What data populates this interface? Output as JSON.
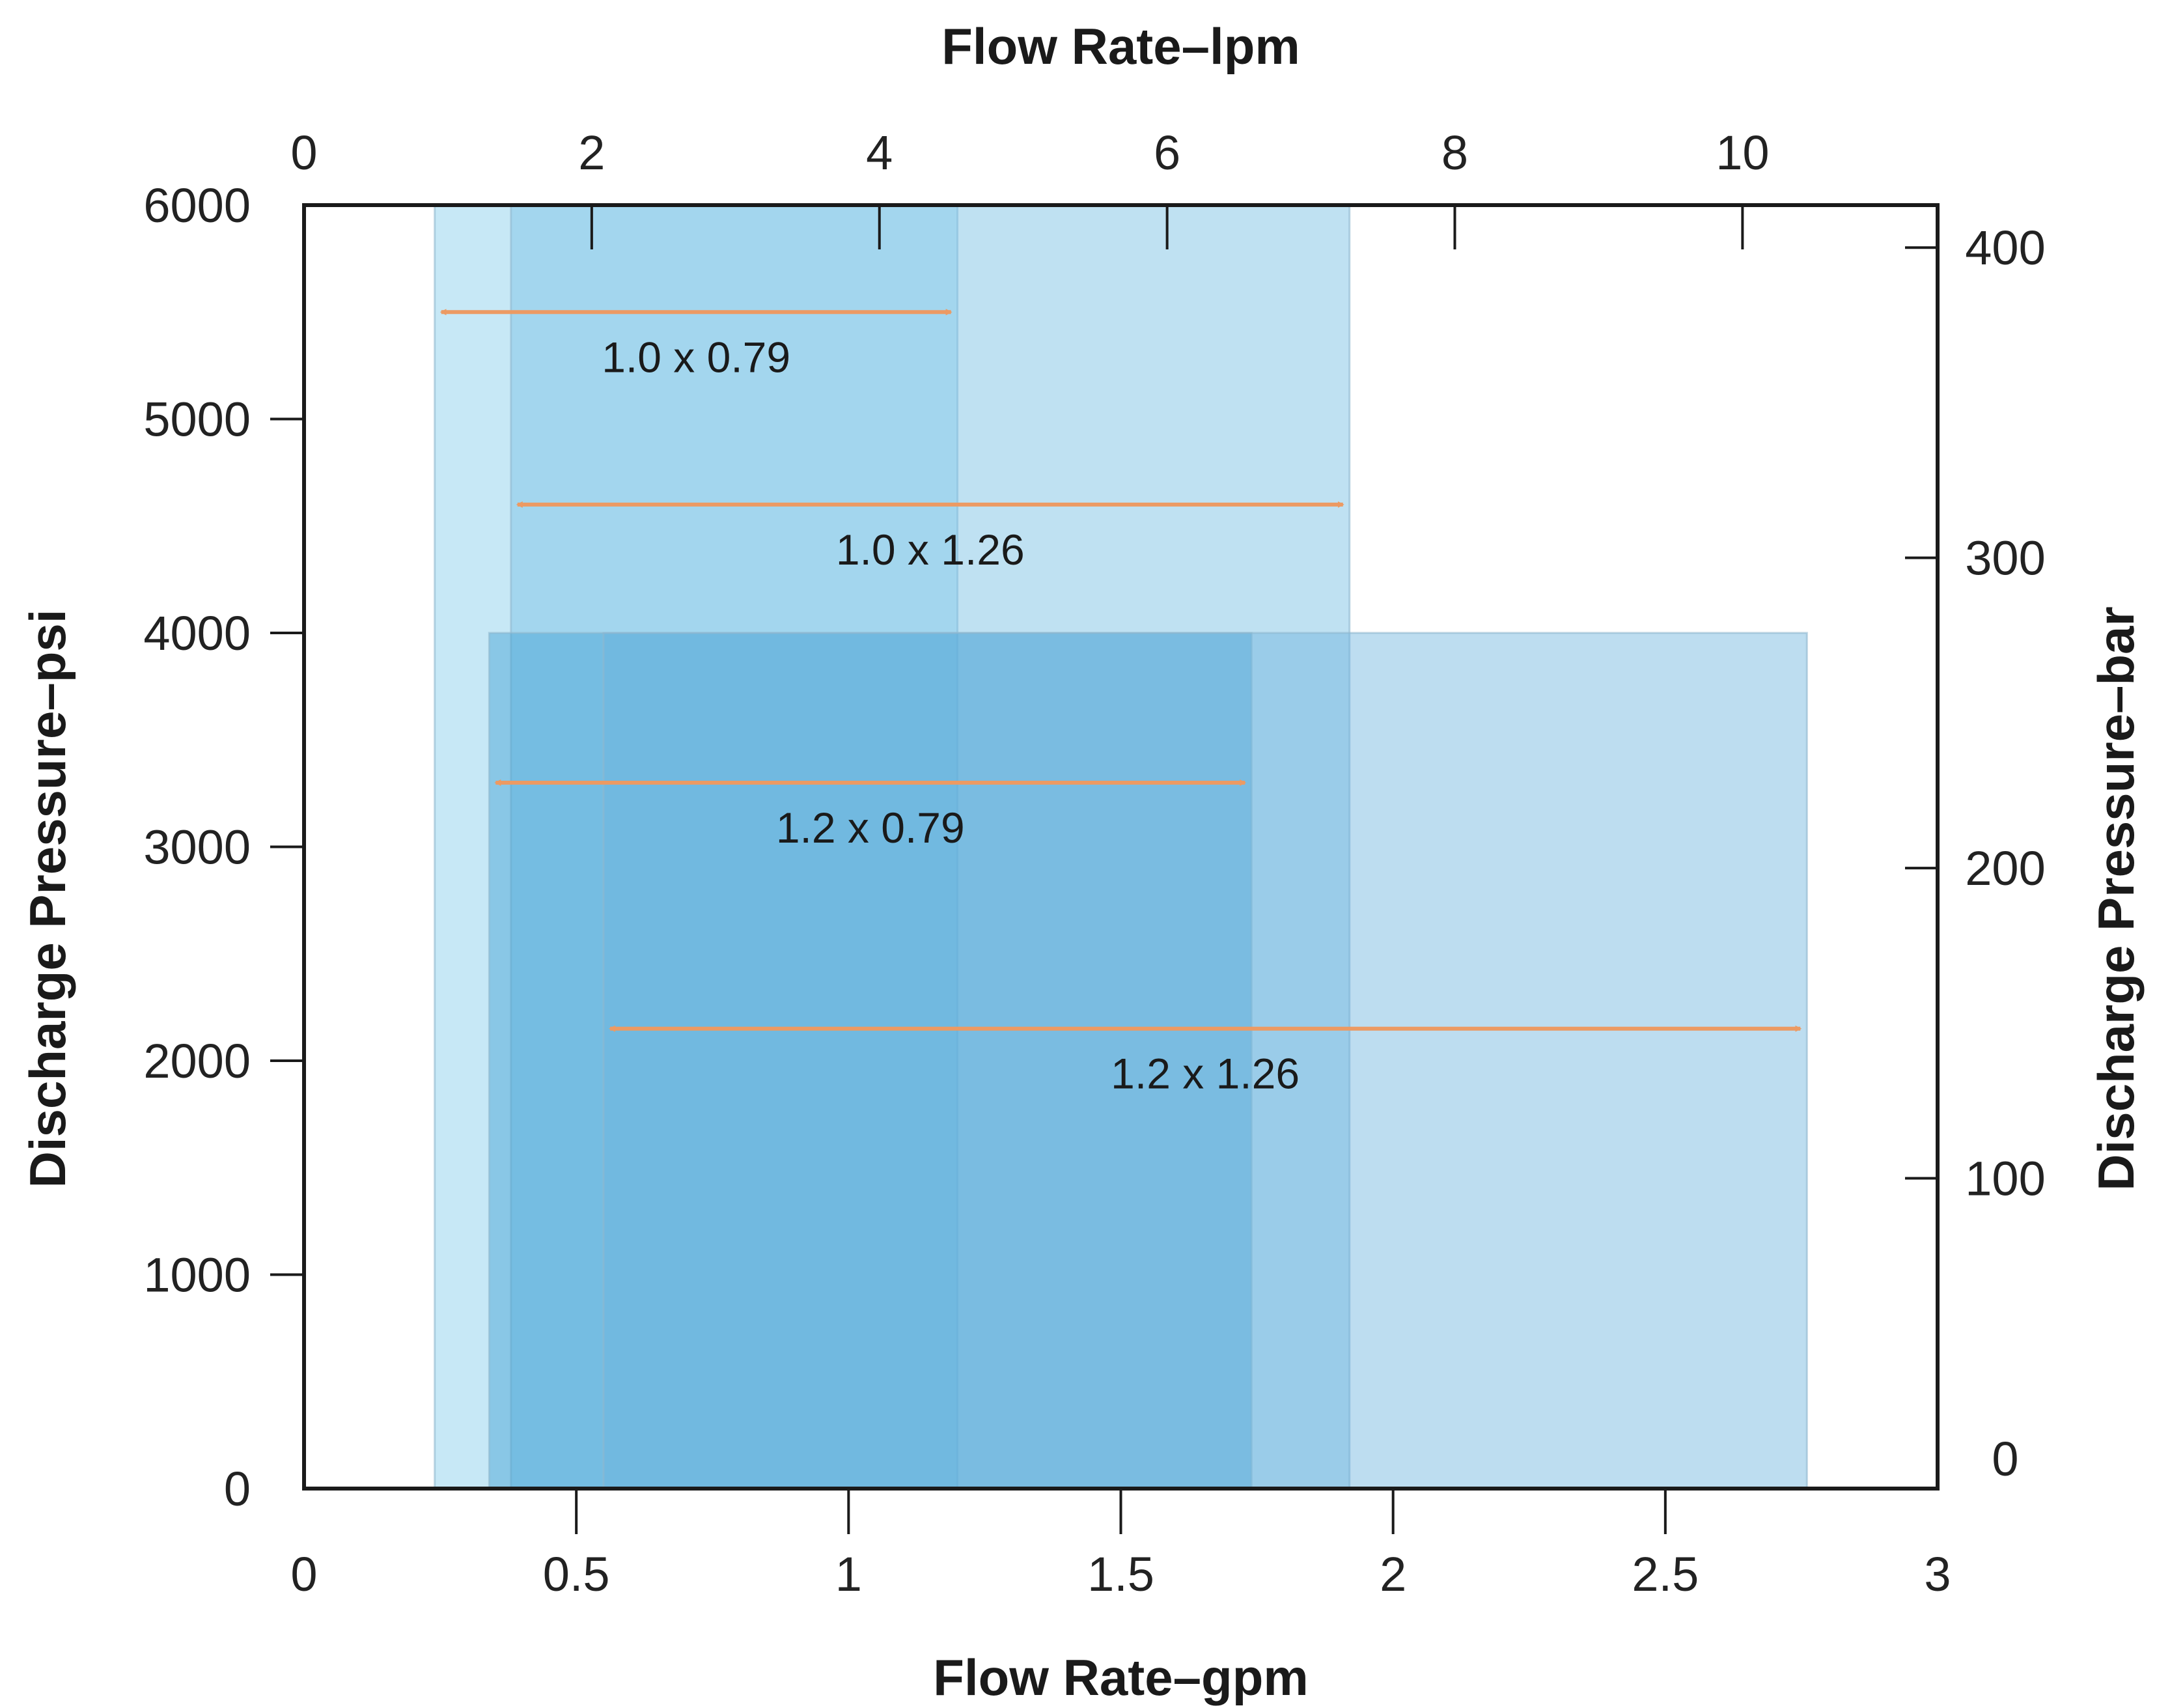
{
  "chart_data": {
    "type": "range",
    "xlabel_bottom": "Flow Rate–gpm",
    "xlabel_top": "Flow Rate–lpm",
    "ylabel_left": "Discharge Pressure–psi",
    "ylabel_right": "Discharge Pressure–bar",
    "xlim": [
      0,
      3
    ],
    "ylim": [
      0,
      6000
    ],
    "x_ticks": [
      0,
      0.5,
      1,
      1.5,
      2,
      2.5,
      3
    ],
    "x_tick_labels": [
      "0",
      "0.5",
      "1",
      "1.5",
      "2",
      "2.5",
      "3"
    ],
    "y_ticks": [
      0,
      1000,
      2000,
      3000,
      4000,
      5000,
      6000
    ],
    "y_tick_labels": [
      "0",
      "1000",
      "2000",
      "3000",
      "4000",
      "5000",
      "6000"
    ],
    "top_ticks_lpm": [
      0,
      2,
      4,
      6,
      8,
      10
    ],
    "top_tick_labels": [
      "0",
      "2",
      "4",
      "6",
      "8",
      "10"
    ],
    "right_ticks_bar": [
      0,
      100,
      200,
      300,
      400
    ],
    "right_tick_labels": [
      "0",
      "100",
      "200",
      "300",
      "400"
    ],
    "grid": false,
    "ranges": [
      {
        "label": "1.0 x 0.79",
        "x_min": 0.24,
        "x_max": 1.2,
        "arrow_x_min": 0.24,
        "arrow_x_max": 1.2,
        "arrow_y": 5500,
        "max_pressure_psi": 6000,
        "fill": "#b4e0f3",
        "opacity": 0.75
      },
      {
        "label": "1.0 x 1.26",
        "x_min": 0.38,
        "x_max": 1.92,
        "arrow_x_min": 0.38,
        "arrow_x_max": 1.92,
        "arrow_y": 4600,
        "max_pressure_psi": 6000,
        "fill": "#7fc3e6",
        "opacity": 0.5
      },
      {
        "label": "1.2 x 0.79",
        "x_min": 0.34,
        "x_max": 1.74,
        "arrow_x_min": 0.34,
        "arrow_x_max": 1.74,
        "arrow_y": 3300,
        "max_pressure_psi": 4000,
        "fill": "#3d9fd2",
        "opacity": 0.45
      },
      {
        "label": "1.2 x 1.26",
        "x_min": 0.55,
        "x_max": 2.76,
        "arrow_x_min": 0.55,
        "arrow_x_max": 2.76,
        "arrow_y": 2150,
        "max_pressure_psi": 4000,
        "fill": "#6cb4de",
        "opacity": 0.45
      }
    ],
    "colors": {
      "arrow": "#ec9a63",
      "axis": "#1a1a1a"
    }
  }
}
